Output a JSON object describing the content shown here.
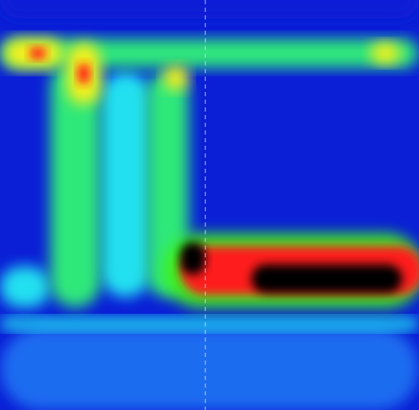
{
  "chart_data": {
    "type": "heatmap",
    "title": "",
    "xlabel": "",
    "ylabel": "",
    "colorscale": [
      "#0a1fd6",
      "#1f6cf0",
      "#22e0f0",
      "#2ee87a",
      "#3ef01a",
      "#f4f01a",
      "#ff1a1a",
      "#000000"
    ],
    "grid": false,
    "legend": "none",
    "colorbar": false,
    "reference_lines_x": [
      0.49
    ],
    "blobs": [
      {
        "id": "top-band",
        "x": 0.5,
        "y": 0.0,
        "w": 1.0,
        "h": 0.09,
        "level": 0
      },
      {
        "id": "upper-stripe",
        "x": 0.5,
        "y": 0.13,
        "w": 1.0,
        "h": 0.07,
        "level": 3
      },
      {
        "id": "upper-left-hot",
        "x": 0.08,
        "y": 0.13,
        "w": 0.14,
        "h": 0.07,
        "level": 5
      },
      {
        "id": "upper-left-core",
        "x": 0.09,
        "y": 0.13,
        "w": 0.04,
        "h": 0.03,
        "level": 6
      },
      {
        "id": "upper-mid-hot",
        "x": 0.2,
        "y": 0.18,
        "w": 0.08,
        "h": 0.15,
        "level": 5
      },
      {
        "id": "upper-mid-core",
        "x": 0.2,
        "y": 0.18,
        "w": 0.03,
        "h": 0.05,
        "level": 6
      },
      {
        "id": "upper-spot-a",
        "x": 0.42,
        "y": 0.19,
        "w": 0.06,
        "h": 0.06,
        "level": 5
      },
      {
        "id": "upper-spot-b",
        "x": 0.92,
        "y": 0.13,
        "w": 0.07,
        "h": 0.05,
        "level": 5
      },
      {
        "id": "vertical-a",
        "x": 0.18,
        "y": 0.45,
        "w": 0.12,
        "h": 0.6,
        "level": 3
      },
      {
        "id": "vertical-b",
        "x": 0.4,
        "y": 0.45,
        "w": 0.1,
        "h": 0.55,
        "level": 3
      },
      {
        "id": "vertical-c",
        "x": 0.3,
        "y": 0.45,
        "w": 0.12,
        "h": 0.55,
        "level": 2
      },
      {
        "id": "left-band",
        "x": 0.06,
        "y": 0.7,
        "w": 0.12,
        "h": 0.1,
        "level": 2
      },
      {
        "id": "lower-ridge",
        "x": 0.7,
        "y": 0.66,
        "w": 0.62,
        "h": 0.18,
        "level": 4
      },
      {
        "id": "lower-hot",
        "x": 0.72,
        "y": 0.66,
        "w": 0.58,
        "h": 0.12,
        "level": 6
      },
      {
        "id": "lower-core-left",
        "x": 0.46,
        "y": 0.63,
        "w": 0.06,
        "h": 0.08,
        "level": 7
      },
      {
        "id": "lower-core-right",
        "x": 0.78,
        "y": 0.68,
        "w": 0.36,
        "h": 0.07,
        "level": 7
      },
      {
        "id": "bottom-stripe",
        "x": 0.5,
        "y": 0.79,
        "w": 1.0,
        "h": 0.03,
        "level": 2
      },
      {
        "id": "bottom-band",
        "x": 0.5,
        "y": 0.9,
        "w": 1.0,
        "h": 0.2,
        "level": 1
      }
    ]
  }
}
